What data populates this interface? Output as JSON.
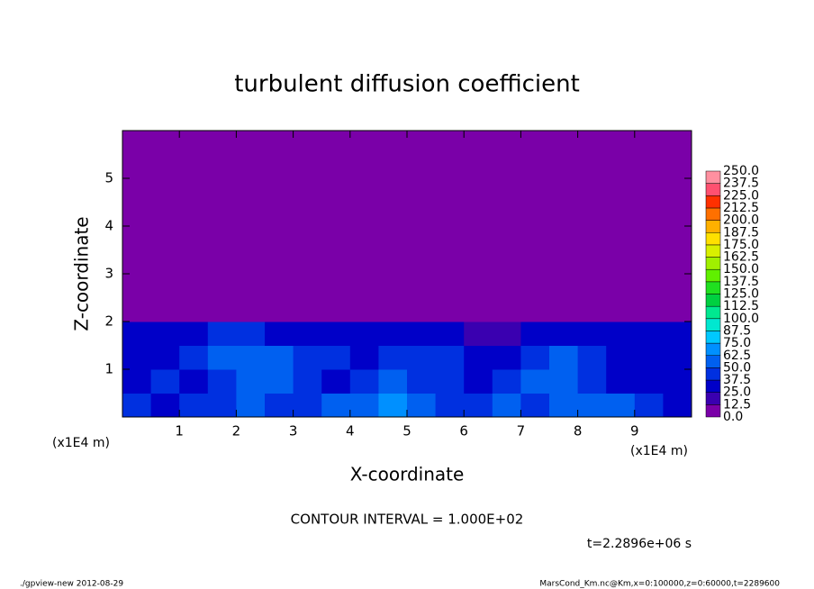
{
  "chart_data": {
    "type": "heatmap",
    "title": "turbulent diffusion coefficient",
    "x_label": "X-coordinate",
    "y_label": "Z-coordinate",
    "x_unit": "(x1E4 m)",
    "y_unit": "(x1E4 m)",
    "xlim": [
      0,
      10
    ],
    "ylim": [
      0,
      6
    ],
    "xticks": [
      1,
      2,
      3,
      4,
      5,
      6,
      7,
      8,
      9
    ],
    "yticks": [
      1,
      2,
      3,
      4,
      5
    ],
    "x_edges": [
      0,
      0.5,
      1,
      1.5,
      2,
      2.5,
      3,
      3.5,
      4,
      4.5,
      5,
      5.5,
      6,
      6.5,
      7,
      7.5,
      8,
      8.5,
      9,
      9.5,
      10
    ],
    "z_edges": [
      0,
      0.5,
      1,
      1.5,
      2,
      6
    ],
    "values": [
      [
        40,
        35,
        45,
        40,
        50,
        45,
        40,
        55,
        60,
        65,
        55,
        45,
        40,
        50,
        45,
        55,
        60,
        50,
        40,
        35
      ],
      [
        35,
        40,
        30,
        45,
        55,
        50,
        40,
        35,
        45,
        50,
        45,
        40,
        35,
        45,
        50,
        55,
        40,
        35,
        30,
        35
      ],
      [
        30,
        35,
        40,
        50,
        60,
        55,
        45,
        40,
        35,
        40,
        45,
        40,
        35,
        30,
        40,
        60,
        45,
        35,
        30,
        35
      ],
      [
        25,
        30,
        35,
        40,
        45,
        35,
        30,
        25,
        30,
        35,
        30,
        25,
        20,
        15,
        30,
        35,
        30,
        25,
        30,
        25
      ],
      [
        0,
        0,
        0,
        0,
        0,
        0,
        0,
        0,
        0,
        0,
        0,
        0,
        0,
        0,
        0,
        0,
        0,
        0,
        0,
        0
      ]
    ],
    "levels": [
      {
        "value": 0,
        "label": "0.0"
      },
      {
        "value": 12.5,
        "label": "12.5"
      },
      {
        "value": 25,
        "label": "25.0"
      },
      {
        "value": 37.5,
        "label": "37.5"
      },
      {
        "value": 50,
        "label": "50.0"
      },
      {
        "value": 62.5,
        "label": "62.5"
      },
      {
        "value": 75,
        "label": "75.0"
      },
      {
        "value": 87.5,
        "label": "87.5"
      },
      {
        "value": 100,
        "label": "100.0"
      },
      {
        "value": 112.5,
        "label": "112.5"
      },
      {
        "value": 125,
        "label": "125.0"
      },
      {
        "value": 137.5,
        "label": "137.5"
      },
      {
        "value": 150,
        "label": "150.0"
      },
      {
        "value": 162.5,
        "label": "162.5"
      },
      {
        "value": 175,
        "label": "175.0"
      },
      {
        "value": 187.5,
        "label": "187.5"
      },
      {
        "value": 200,
        "label": "200.0"
      },
      {
        "value": 212.5,
        "label": "212.5"
      },
      {
        "value": 225,
        "label": "225.0"
      },
      {
        "value": 237.5,
        "label": "237.5"
      },
      {
        "value": 250,
        "label": "250.0"
      }
    ],
    "colors": [
      "#7a00a8",
      "#3a00b0",
      "#0000c8",
      "#0030e0",
      "#0060f0",
      "#0090ff",
      "#00c8ff",
      "#00e8d0",
      "#00e890",
      "#00d040",
      "#20e020",
      "#60f000",
      "#a0f000",
      "#d8f000",
      "#ffe000",
      "#ffb000",
      "#ff7000",
      "#ff3000",
      "#ff5070",
      "#ff90a0"
    ],
    "contour_interval": "CONTOUR INTERVAL = 1.000E+02",
    "time_label": "t=2.2896e+06 s",
    "footer_left": "./gpview-new  2012-08-29",
    "footer_right": "MarsCond_Km.nc@Km,x=0:100000,z=0:60000,t=2289600"
  }
}
